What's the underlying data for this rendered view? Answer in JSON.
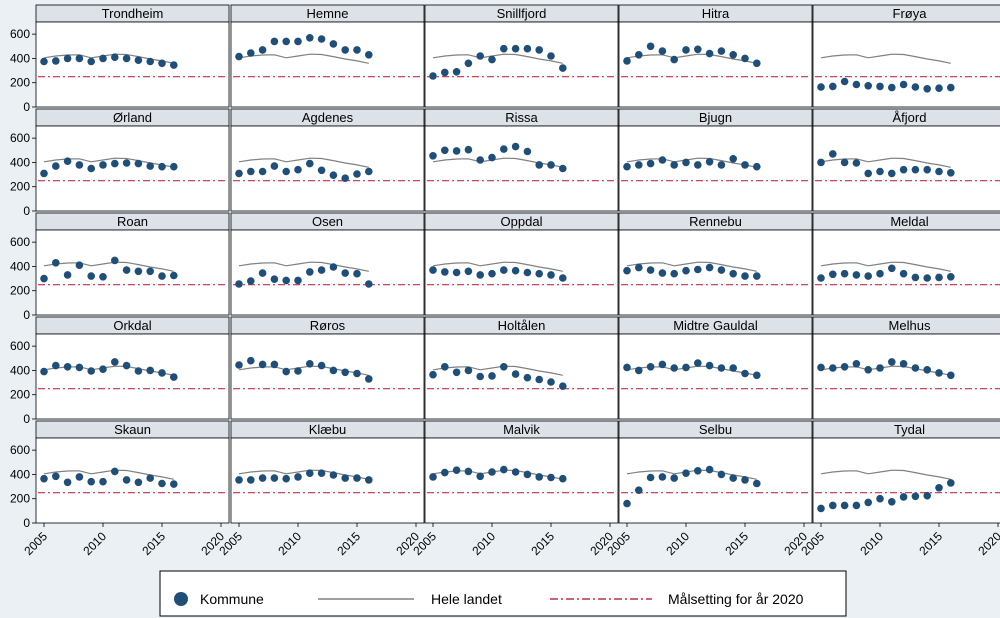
{
  "chart_data": {
    "type": "scatter",
    "title": "",
    "xlabel": "",
    "ylabel": "",
    "xlim": [
      2005,
      2020
    ],
    "ylim": [
      0,
      700
    ],
    "x_ticks": [
      2005,
      2010,
      2015,
      2020
    ],
    "y_ticks": [
      0,
      200,
      400,
      600
    ],
    "target_value": 250,
    "colors": {
      "points": "#1f4e79",
      "national_line": "#808080",
      "target_line": "#c0304a",
      "strip_bg": "#dde2e8",
      "panel_bg": "#ffffff",
      "page_bg": "#eaf0f4"
    },
    "legend": {
      "position": "bottom",
      "kommune": "Kommune",
      "national": "Hele landet",
      "target": "Målsetting for år 2020"
    },
    "national_series": {
      "name": "Hele landet",
      "x": [
        2005,
        2006,
        2007,
        2008,
        2009,
        2010,
        2011,
        2012,
        2013,
        2014,
        2015,
        2016
      ],
      "values": [
        405,
        420,
        428,
        430,
        405,
        420,
        435,
        432,
        415,
        395,
        380,
        360
      ]
    },
    "panels": [
      {
        "name": "Trondheim",
        "years": [
          2005,
          2006,
          2007,
          2008,
          2009,
          2010,
          2011,
          2012,
          2013,
          2014,
          2015,
          2016
        ],
        "values": [
          375,
          380,
          400,
          400,
          375,
          400,
          410,
          400,
          385,
          375,
          360,
          345
        ]
      },
      {
        "name": "Hemne",
        "years": [
          2005,
          2006,
          2007,
          2008,
          2009,
          2010,
          2011,
          2012,
          2013,
          2014,
          2015,
          2016
        ],
        "values": [
          415,
          445,
          470,
          540,
          540,
          540,
          570,
          560,
          520,
          470,
          470,
          430
        ]
      },
      {
        "name": "Snillfjord",
        "years": [
          2005,
          2006,
          2007,
          2008,
          2009,
          2010,
          2011,
          2012,
          2013,
          2014,
          2015,
          2016
        ],
        "values": [
          255,
          285,
          290,
          360,
          420,
          390,
          480,
          480,
          480,
          470,
          420,
          320
        ]
      },
      {
        "name": "Hitra",
        "years": [
          2005,
          2006,
          2007,
          2008,
          2009,
          2010,
          2011,
          2012,
          2013,
          2014,
          2015,
          2016
        ],
        "values": [
          380,
          430,
          500,
          460,
          390,
          470,
          475,
          440,
          460,
          430,
          400,
          360
        ]
      },
      {
        "name": "Frøya",
        "years": [
          2005,
          2006,
          2007,
          2008,
          2009,
          2010,
          2011,
          2012,
          2013,
          2014,
          2015,
          2016
        ],
        "values": [
          165,
          170,
          210,
          185,
          175,
          170,
          160,
          185,
          165,
          150,
          155,
          160
        ]
      },
      {
        "name": "Ørland",
        "years": [
          2005,
          2006,
          2007,
          2008,
          2009,
          2010,
          2011,
          2012,
          2013,
          2014,
          2015,
          2016
        ],
        "values": [
          310,
          370,
          410,
          380,
          350,
          380,
          390,
          395,
          390,
          370,
          365,
          365
        ]
      },
      {
        "name": "Agdenes",
        "years": [
          2005,
          2006,
          2007,
          2008,
          2009,
          2010,
          2011,
          2012,
          2013,
          2014,
          2015,
          2016
        ],
        "values": [
          310,
          325,
          325,
          370,
          325,
          340,
          390,
          335,
          295,
          270,
          305,
          325
        ]
      },
      {
        "name": "Rissa",
        "years": [
          2005,
          2006,
          2007,
          2008,
          2009,
          2010,
          2011,
          2012,
          2013,
          2014,
          2015,
          2016
        ],
        "values": [
          455,
          500,
          495,
          505,
          420,
          440,
          510,
          530,
          490,
          380,
          380,
          350
        ]
      },
      {
        "name": "Bjugn",
        "years": [
          2005,
          2006,
          2007,
          2008,
          2009,
          2010,
          2011,
          2012,
          2013,
          2014,
          2015,
          2016
        ],
        "values": [
          365,
          380,
          390,
          420,
          380,
          400,
          380,
          405,
          380,
          430,
          380,
          365
        ]
      },
      {
        "name": "Åfjord",
        "years": [
          2005,
          2006,
          2007,
          2008,
          2009,
          2010,
          2011,
          2012,
          2013,
          2014,
          2015,
          2016
        ],
        "values": [
          400,
          470,
          400,
          395,
          310,
          325,
          310,
          340,
          340,
          340,
          325,
          315
        ]
      },
      {
        "name": "Roan",
        "years": [
          2005,
          2006,
          2007,
          2008,
          2009,
          2010,
          2011,
          2012,
          2013,
          2014,
          2015,
          2016
        ],
        "values": [
          300,
          430,
          330,
          410,
          320,
          315,
          450,
          370,
          360,
          360,
          320,
          325
        ]
      },
      {
        "name": "Osen",
        "years": [
          2005,
          2006,
          2007,
          2008,
          2009,
          2010,
          2011,
          2012,
          2013,
          2014,
          2015,
          2016
        ],
        "values": [
          255,
          280,
          345,
          295,
          285,
          285,
          355,
          370,
          395,
          345,
          340,
          255
        ]
      },
      {
        "name": "Oppdal",
        "years": [
          2005,
          2006,
          2007,
          2008,
          2009,
          2010,
          2011,
          2012,
          2013,
          2014,
          2015,
          2016
        ],
        "values": [
          370,
          355,
          350,
          360,
          330,
          340,
          370,
          365,
          350,
          340,
          330,
          305
        ]
      },
      {
        "name": "Rennebu",
        "years": [
          2005,
          2006,
          2007,
          2008,
          2009,
          2010,
          2011,
          2012,
          2013,
          2014,
          2015,
          2016
        ],
        "values": [
          365,
          390,
          370,
          345,
          340,
          365,
          375,
          390,
          370,
          340,
          320,
          320
        ]
      },
      {
        "name": "Meldal",
        "years": [
          2005,
          2006,
          2007,
          2008,
          2009,
          2010,
          2011,
          2012,
          2013,
          2014,
          2015,
          2016
        ],
        "values": [
          305,
          335,
          340,
          330,
          320,
          340,
          385,
          340,
          310,
          305,
          310,
          315
        ]
      },
      {
        "name": "Orkdal",
        "years": [
          2005,
          2006,
          2007,
          2008,
          2009,
          2010,
          2011,
          2012,
          2013,
          2014,
          2015,
          2016
        ],
        "values": [
          390,
          440,
          430,
          425,
          395,
          410,
          470,
          440,
          395,
          400,
          380,
          345
        ]
      },
      {
        "name": "Røros",
        "years": [
          2005,
          2006,
          2007,
          2008,
          2009,
          2010,
          2011,
          2012,
          2013,
          2014,
          2015,
          2016
        ],
        "values": [
          445,
          480,
          450,
          450,
          390,
          395,
          455,
          440,
          400,
          385,
          375,
          330
        ]
      },
      {
        "name": "Holtålen",
        "years": [
          2005,
          2006,
          2007,
          2008,
          2009,
          2010,
          2011,
          2012,
          2013,
          2014,
          2015,
          2016
        ],
        "values": [
          365,
          430,
          385,
          400,
          350,
          355,
          430,
          370,
          340,
          325,
          305,
          270
        ]
      },
      {
        "name": "Midtre Gauldal",
        "years": [
          2005,
          2006,
          2007,
          2008,
          2009,
          2010,
          2011,
          2012,
          2013,
          2014,
          2015,
          2016
        ],
        "values": [
          425,
          400,
          430,
          450,
          420,
          425,
          460,
          440,
          420,
          420,
          375,
          360
        ]
      },
      {
        "name": "Melhus",
        "years": [
          2005,
          2006,
          2007,
          2008,
          2009,
          2010,
          2011,
          2012,
          2013,
          2014,
          2015,
          2016
        ],
        "values": [
          425,
          420,
          430,
          455,
          405,
          420,
          470,
          455,
          420,
          405,
          380,
          360
        ]
      },
      {
        "name": "Skaun",
        "years": [
          2005,
          2006,
          2007,
          2008,
          2009,
          2010,
          2011,
          2012,
          2013,
          2014,
          2015,
          2016
        ],
        "values": [
          365,
          385,
          335,
          380,
          340,
          340,
          425,
          355,
          335,
          370,
          325,
          320
        ]
      },
      {
        "name": "Klæbu",
        "years": [
          2005,
          2006,
          2007,
          2008,
          2009,
          2010,
          2011,
          2012,
          2013,
          2014,
          2015,
          2016
        ],
        "values": [
          355,
          355,
          370,
          370,
          365,
          380,
          410,
          410,
          395,
          370,
          370,
          355
        ]
      },
      {
        "name": "Malvik",
        "years": [
          2005,
          2006,
          2007,
          2008,
          2009,
          2010,
          2011,
          2012,
          2013,
          2014,
          2015,
          2016
        ],
        "values": [
          380,
          415,
          435,
          425,
          385,
          420,
          440,
          420,
          400,
          380,
          375,
          365
        ]
      },
      {
        "name": "Selbu",
        "years": [
          2005,
          2006,
          2007,
          2008,
          2009,
          2010,
          2011,
          2012,
          2013,
          2014,
          2015,
          2016
        ],
        "values": [
          160,
          270,
          375,
          380,
          370,
          410,
          430,
          440,
          400,
          370,
          355,
          325
        ]
      },
      {
        "name": "Tydal",
        "years": [
          2005,
          2006,
          2007,
          2008,
          2009,
          2010,
          2011,
          2012,
          2013,
          2014,
          2015,
          2016
        ],
        "values": [
          120,
          145,
          145,
          145,
          170,
          200,
          175,
          215,
          220,
          225,
          290,
          330
        ]
      }
    ]
  }
}
